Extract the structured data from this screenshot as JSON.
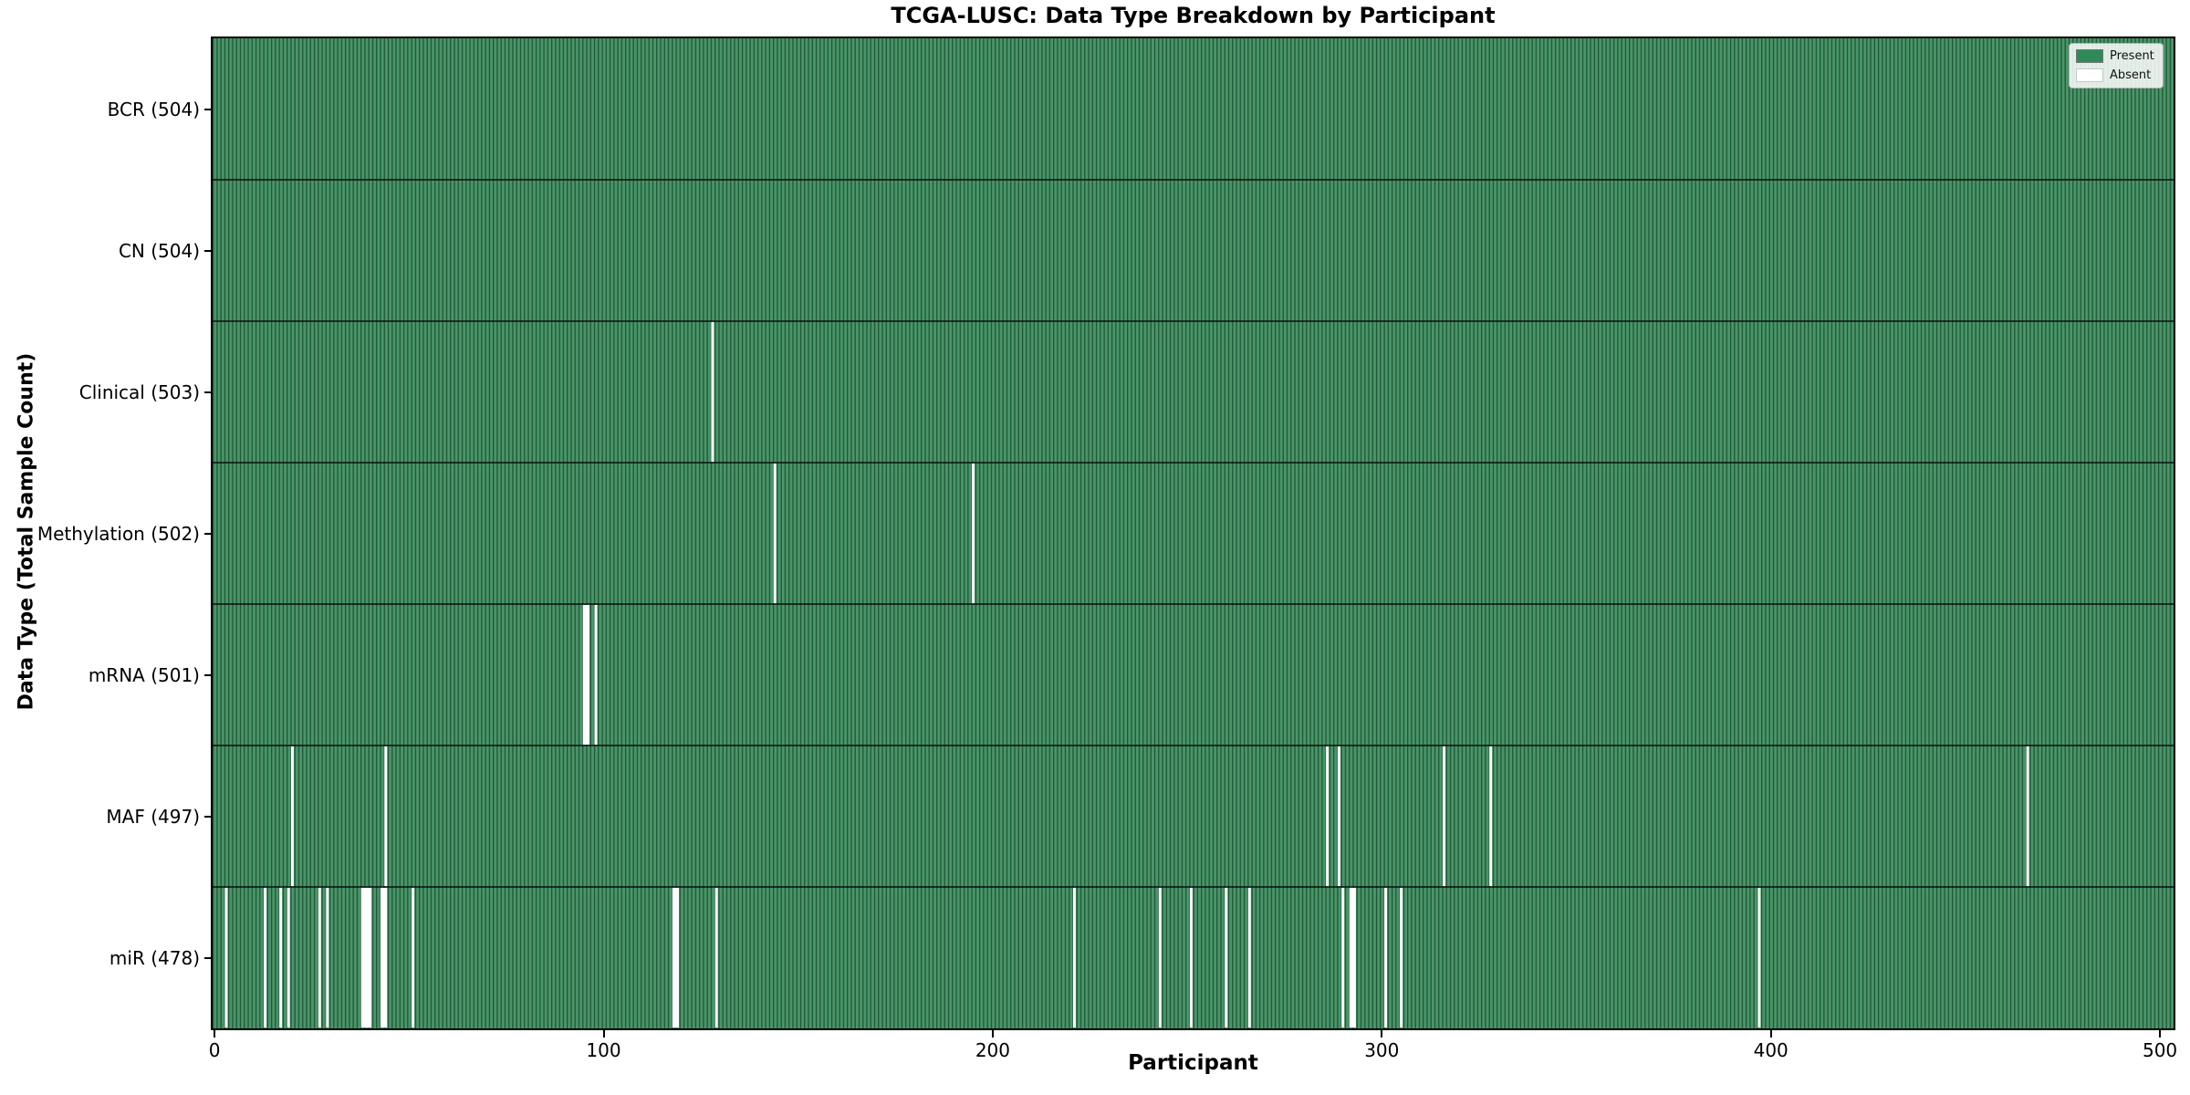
{
  "page": {
    "background": "#ffffff"
  },
  "chart_data": {
    "type": "heatmap",
    "title": "TCGA-LUSC: Data Type Breakdown by Participant",
    "xlabel": "Participant",
    "ylabel": "Data Type (Total Sample Count)",
    "n_participants": 504,
    "x_ticks": [
      0,
      100,
      200,
      300,
      400,
      500
    ],
    "grid": false,
    "legend": {
      "position": "upper-right",
      "entries": [
        {
          "label": "Present",
          "color": "#2e8b57"
        },
        {
          "label": "Absent",
          "color": "#ffffff"
        }
      ]
    },
    "colors": {
      "present": "#2e8b57",
      "present_light": "#4a9569",
      "bar_edge": "#1f5737",
      "absent": "#ffffff",
      "separator": "#000000"
    },
    "rows": [
      {
        "data_type": "BCR",
        "label": "BCR (504)",
        "present_count": 504,
        "absent_participants": []
      },
      {
        "data_type": "CN",
        "label": "CN (504)",
        "present_count": 504,
        "absent_participants": []
      },
      {
        "data_type": "Clinical",
        "label": "Clinical (503)",
        "present_count": 503,
        "absent_participants": [
          128
        ]
      },
      {
        "data_type": "Methylation",
        "label": "Methylation (502)",
        "present_count": 502,
        "absent_participants": [
          144,
          195
        ]
      },
      {
        "data_type": "mRNA",
        "label": "mRNA (501)",
        "present_count": 501,
        "absent_participants": [
          95,
          96,
          98
        ]
      },
      {
        "data_type": "MAF",
        "label": "MAF (497)",
        "present_count": 497,
        "absent_participants": [
          20,
          44,
          286,
          289,
          316,
          328,
          466
        ]
      },
      {
        "data_type": "miR",
        "label": "miR (478)",
        "present_count": 478,
        "absent_participants": [
          3,
          13,
          17,
          19,
          27,
          29,
          38,
          39,
          40,
          43,
          44,
          51,
          118,
          119,
          129,
          221,
          243,
          251,
          260,
          266,
          290,
          292,
          293,
          301,
          305,
          397
        ]
      }
    ]
  }
}
